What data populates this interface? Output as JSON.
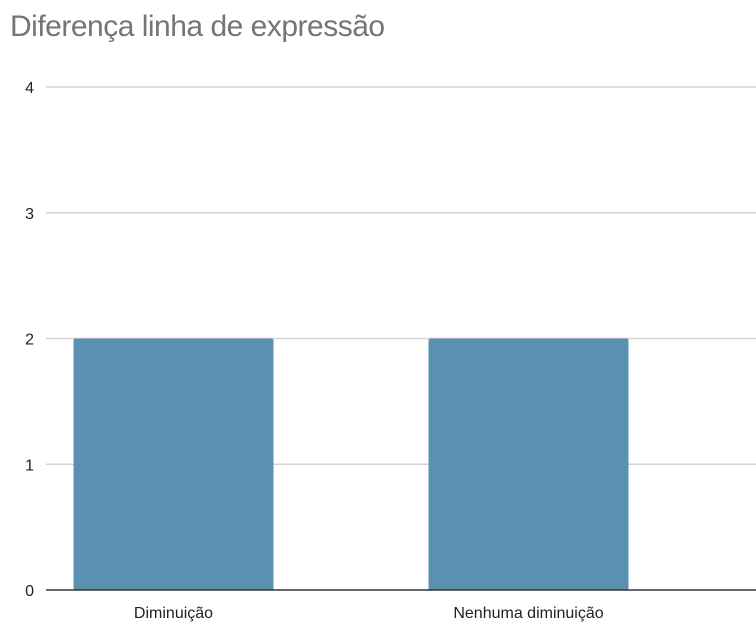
{
  "chart_data": {
    "type": "bar",
    "title": "Diferença linha de expressão",
    "xlabel": "",
    "ylabel": "",
    "categories": [
      "Diminuição",
      "Nenhuma diminuição"
    ],
    "values": [
      2,
      2
    ],
    "ylim": [
      0,
      4
    ],
    "yticks": [
      "0",
      "1",
      "2",
      "3",
      "4"
    ],
    "grid": true,
    "legend": "none",
    "colors": {
      "bar": "#5a91b0",
      "grid": "#d3d3d3",
      "axis": "#333333",
      "title": "#757575"
    }
  }
}
